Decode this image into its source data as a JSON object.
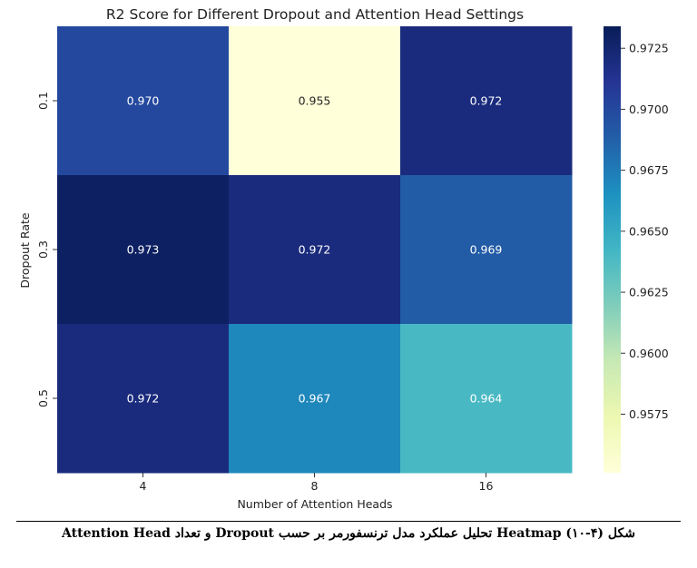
{
  "chart_data": {
    "type": "heatmap",
    "title": "R2 Score for Different Dropout and Attention Head Settings",
    "xlabel": "Number of Attention Heads",
    "ylabel": "Dropout Rate",
    "x_categories": [
      "4",
      "8",
      "16"
    ],
    "y_categories": [
      "0.1",
      "0.3",
      "0.5"
    ],
    "values": [
      [
        0.97,
        0.955,
        0.972
      ],
      [
        0.973,
        0.972,
        0.969
      ],
      [
        0.972,
        0.967,
        0.964
      ]
    ],
    "cell_labels": [
      [
        "0.970",
        "0.955",
        "0.972"
      ],
      [
        "0.973",
        "0.972",
        "0.969"
      ],
      [
        "0.972",
        "0.967",
        "0.964"
      ]
    ],
    "colormap": "YlGnBu",
    "colorbar": {
      "range": [
        0.9551,
        0.9734
      ],
      "ticks": [
        "0.9575",
        "0.9600",
        "0.9625",
        "0.9650",
        "0.9675",
        "0.9700",
        "0.9725"
      ]
    }
  },
  "caption": "شکل (۴-۱۰) Heatmap تحلیل عملکرد مدل ترنسفورمر بر حسب Dropout و تعداد Attention Head"
}
